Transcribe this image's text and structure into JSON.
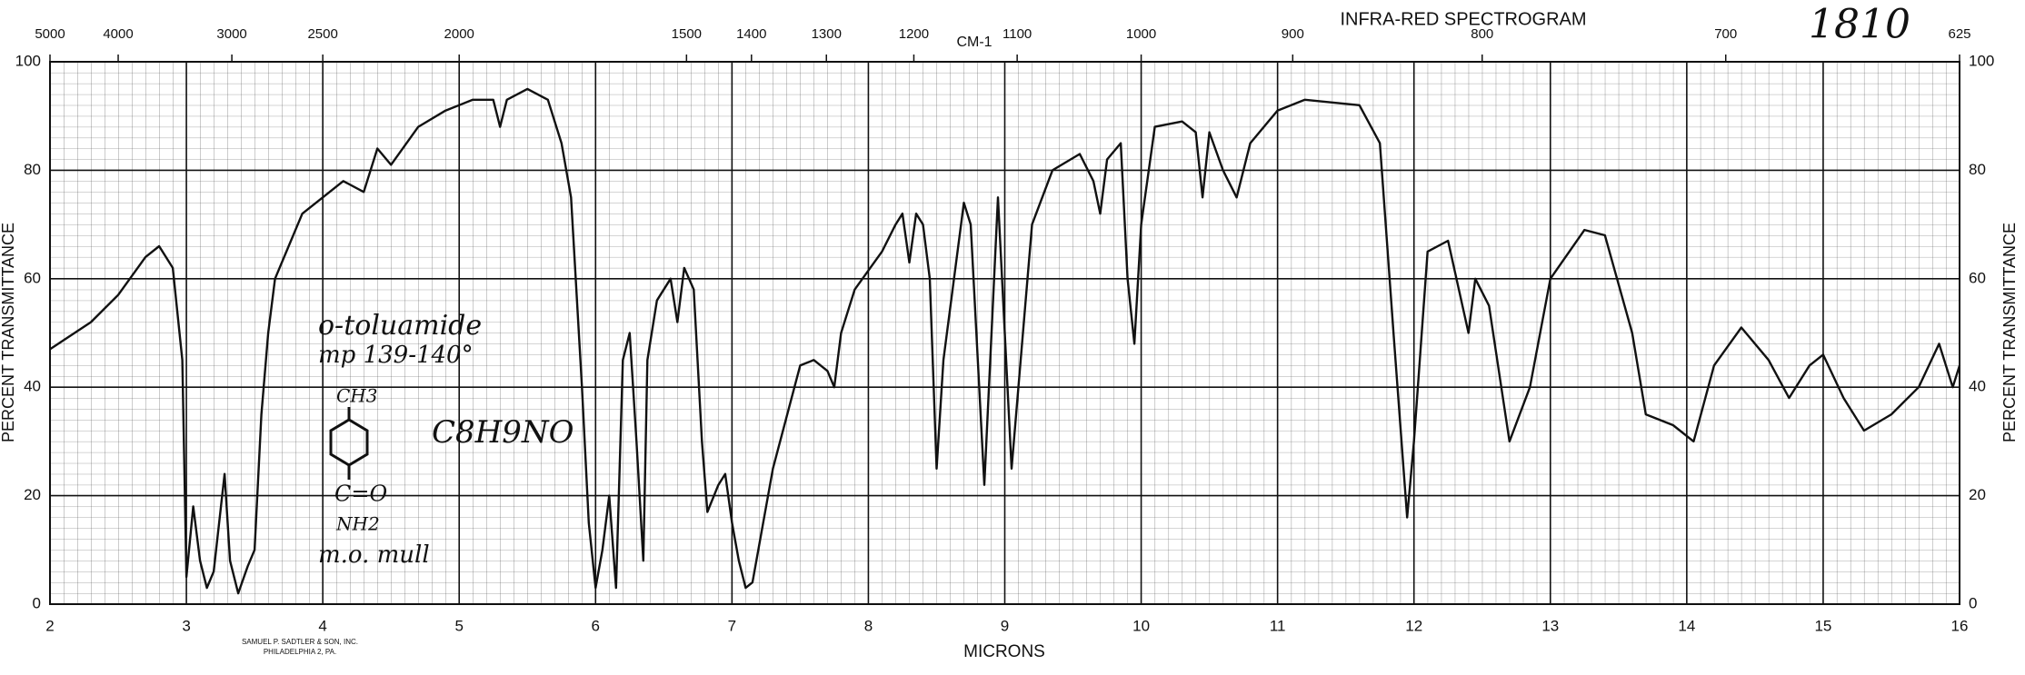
{
  "chart_data": {
    "type": "line",
    "title": "INFRA-RED SPECTROGRAM",
    "spectrum_number": "1810",
    "x_label": "MICRONS",
    "x2_label": "CM-1",
    "y_label": "PERCENT TRANSMITTANCE",
    "xlim": [
      2,
      16
    ],
    "xticks": [
      2,
      3,
      4,
      5,
      6,
      7,
      8,
      9,
      10,
      11,
      12,
      13,
      14,
      15,
      16
    ],
    "x2lim": [
      5000,
      625
    ],
    "x2ticks": [
      5000,
      4000,
      3000,
      2500,
      2000,
      1500,
      1400,
      1300,
      1200,
      1100,
      1000,
      900,
      800,
      700,
      625
    ],
    "ylim": [
      0,
      100
    ],
    "yticks": [
      0,
      20,
      40,
      60,
      80,
      100
    ],
    "grid": true,
    "color": "#111111",
    "x": [
      2,
      2.3,
      2.5,
      2.7,
      2.8,
      2.9,
      2.97,
      3,
      3.05,
      3.1,
      3.15,
      3.2,
      3.28,
      3.32,
      3.38,
      3.45,
      3.5,
      3.55,
      3.6,
      3.65,
      3.75,
      3.85,
      4,
      4.15,
      4.3,
      4.4,
      4.5,
      4.7,
      4.9,
      5.1,
      5.25,
      5.3,
      5.35,
      5.5,
      5.65,
      5.75,
      5.82,
      5.9,
      5.95,
      6,
      6.05,
      6.1,
      6.15,
      6.2,
      6.25,
      6.3,
      6.35,
      6.38,
      6.45,
      6.55,
      6.6,
      6.65,
      6.72,
      6.78,
      6.82,
      6.9,
      6.95,
      7,
      7.05,
      7.1,
      7.15,
      7.3,
      7.5,
      7.6,
      7.7,
      7.75,
      7.8,
      7.9,
      8.1,
      8.2,
      8.25,
      8.3,
      8.35,
      8.4,
      8.45,
      8.5,
      8.55,
      8.7,
      8.75,
      8.85,
      8.95,
      9,
      9.05,
      9.1,
      9.2,
      9.35,
      9.55,
      9.65,
      9.7,
      9.75,
      9.85,
      9.9,
      9.95,
      10,
      10.1,
      10.3,
      10.4,
      10.45,
      10.5,
      10.6,
      10.7,
      10.8,
      11,
      11.2,
      11.6,
      11.75,
      11.85,
      11.95,
      12,
      12.1,
      12.25,
      12.4,
      12.45,
      12.55,
      12.7,
      12.85,
      13,
      13.25,
      13.4,
      13.6,
      13.7,
      13.9,
      14.05,
      14.2,
      14.4,
      14.6,
      14.75,
      14.9,
      15,
      15.15,
      15.3,
      15.5,
      15.7,
      15.85,
      15.95,
      16
    ],
    "values": [
      47,
      52,
      57,
      64,
      66,
      62,
      45,
      5,
      18,
      8,
      3,
      6,
      24,
      8,
      2,
      7,
      10,
      35,
      50,
      60,
      66,
      72,
      75,
      78,
      76,
      84,
      81,
      88,
      91,
      93,
      93,
      88,
      93,
      95,
      93,
      85,
      75,
      40,
      15,
      3,
      10,
      20,
      3,
      45,
      50,
      30,
      8,
      45,
      56,
      60,
      52,
      62,
      58,
      30,
      17,
      22,
      24,
      15,
      8,
      3,
      4,
      25,
      44,
      45,
      43,
      40,
      50,
      58,
      65,
      70,
      72,
      63,
      72,
      70,
      60,
      25,
      45,
      74,
      70,
      22,
      75,
      50,
      25,
      40,
      70,
      80,
      83,
      78,
      72,
      82,
      85,
      60,
      48,
      70,
      88,
      89,
      87,
      75,
      87,
      80,
      75,
      85,
      91,
      93,
      92,
      85,
      50,
      16,
      30,
      65,
      67,
      50,
      60,
      55,
      30,
      40,
      60,
      69,
      68,
      50,
      35,
      33,
      30,
      44,
      51,
      45,
      38,
      44,
      46,
      38,
      32,
      35,
      40,
      48,
      40,
      44
    ],
    "annotations": [
      "o-toluamide",
      "mp 139-140°",
      "CH3",
      "C=O",
      "NH2",
      "C8H9NO",
      "m.o. mull"
    ],
    "publisher": [
      "SAMUEL P. SADTLER & SON, INC.",
      "PHILADELPHIA 2, PA."
    ]
  }
}
